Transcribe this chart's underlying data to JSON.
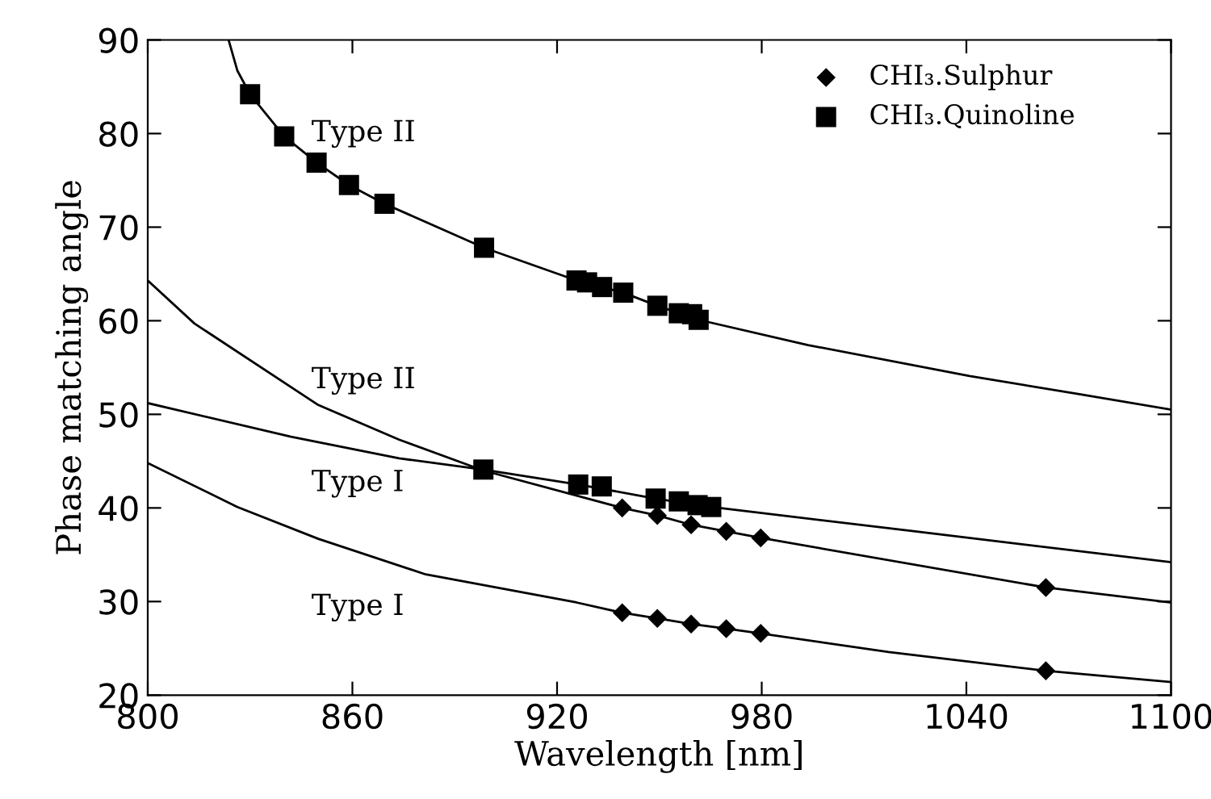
{
  "chart_data": {
    "type": "scatter",
    "xlabel": "Wavelength [nm]",
    "ylabel": "Phase matching angle",
    "xlim": [
      800,
      1100
    ],
    "ylim": [
      20,
      90
    ],
    "xticks": [
      800,
      860,
      920,
      980,
      1040,
      1100
    ],
    "yticks": [
      20,
      30,
      40,
      50,
      60,
      70,
      80,
      90
    ],
    "grid": false,
    "legend": "top right",
    "series": [
      {
        "type": "line",
        "color": "#000000",
        "marker": "none",
        "x": [
          823.7,
          826.3,
          830,
          840,
          849.5,
          859,
          869.4,
          898.6,
          925.7,
          939.4,
          949.4,
          961.5,
          993.6,
          1040.9,
          1072.4,
          1100
        ],
        "values": [
          90,
          86.7,
          84.2,
          79.7,
          76.9,
          74.5,
          72.5,
          67.8,
          64.3,
          63.0,
          61.6,
          60.1,
          57.4,
          54.1,
          52.2,
          50.5
        ]
      },
      {
        "type": "line",
        "color": "#000000",
        "marker": "none",
        "x": [
          800,
          813.7,
          850,
          873.7,
          898.4,
          939.1,
          949.4,
          959.3,
          969.6,
          979.7,
          1063.3,
          1100
        ],
        "values": [
          64.3,
          59.7,
          51.0,
          47.3,
          44.0,
          40.0,
          39.2,
          38.2,
          37.5,
          36.8,
          31.5,
          29.9
        ]
      },
      {
        "type": "line",
        "color": "#000000",
        "marker": "none",
        "x": [
          800,
          842,
          873.7,
          898.4,
          926.2,
          948.9,
          965.2,
          1025,
          1100
        ],
        "values": [
          51.2,
          47.6,
          45.3,
          44.1,
          42.5,
          41.0,
          40.1,
          37.5,
          34.2
        ]
      },
      {
        "type": "line",
        "color": "#000000",
        "marker": "none",
        "x": [
          800,
          826.3,
          850,
          881.5,
          925.7,
          939.1,
          949.4,
          959.3,
          969.6,
          979.7,
          1017.2,
          1063.3,
          1100
        ],
        "values": [
          44.8,
          40.1,
          36.7,
          32.9,
          29.9,
          28.8,
          28.2,
          27.6,
          27.1,
          26.6,
          24.6,
          22.6,
          21.4
        ]
      },
      {
        "name": "CHI₃.Sulphur",
        "color": "#000000",
        "marker": "diamond",
        "x": [
          939.1,
          949.4,
          959.3,
          969.6,
          979.7,
          1063.3,
          939.1,
          949.4,
          959.3,
          969.6,
          979.7,
          1063.3
        ],
        "values": [
          40.0,
          39.2,
          38.2,
          37.5,
          36.8,
          31.5,
          28.8,
          28.2,
          27.6,
          27.1,
          26.6,
          22.6
        ]
      },
      {
        "name": "CHI₃.Quinoline",
        "color": "#000000",
        "marker": "square",
        "x": [
          830,
          840,
          849.5,
          859,
          869.4,
          898.6,
          925.7,
          928.8,
          933.2,
          939.4,
          949.4,
          955.7,
          959.6,
          961.5,
          898.4,
          926.2,
          933.1,
          948.9,
          955.7,
          961.2,
          965.2
        ],
        "values": [
          84.2,
          79.7,
          76.9,
          74.5,
          72.5,
          67.8,
          64.3,
          64.1,
          63.6,
          63.0,
          61.6,
          60.8,
          60.7,
          60.1,
          44.1,
          42.5,
          42.3,
          41.0,
          40.7,
          40.3,
          40.1
        ]
      }
    ],
    "annotations": [
      "Type II",
      "Type II",
      "Type I",
      "Type I"
    ]
  }
}
